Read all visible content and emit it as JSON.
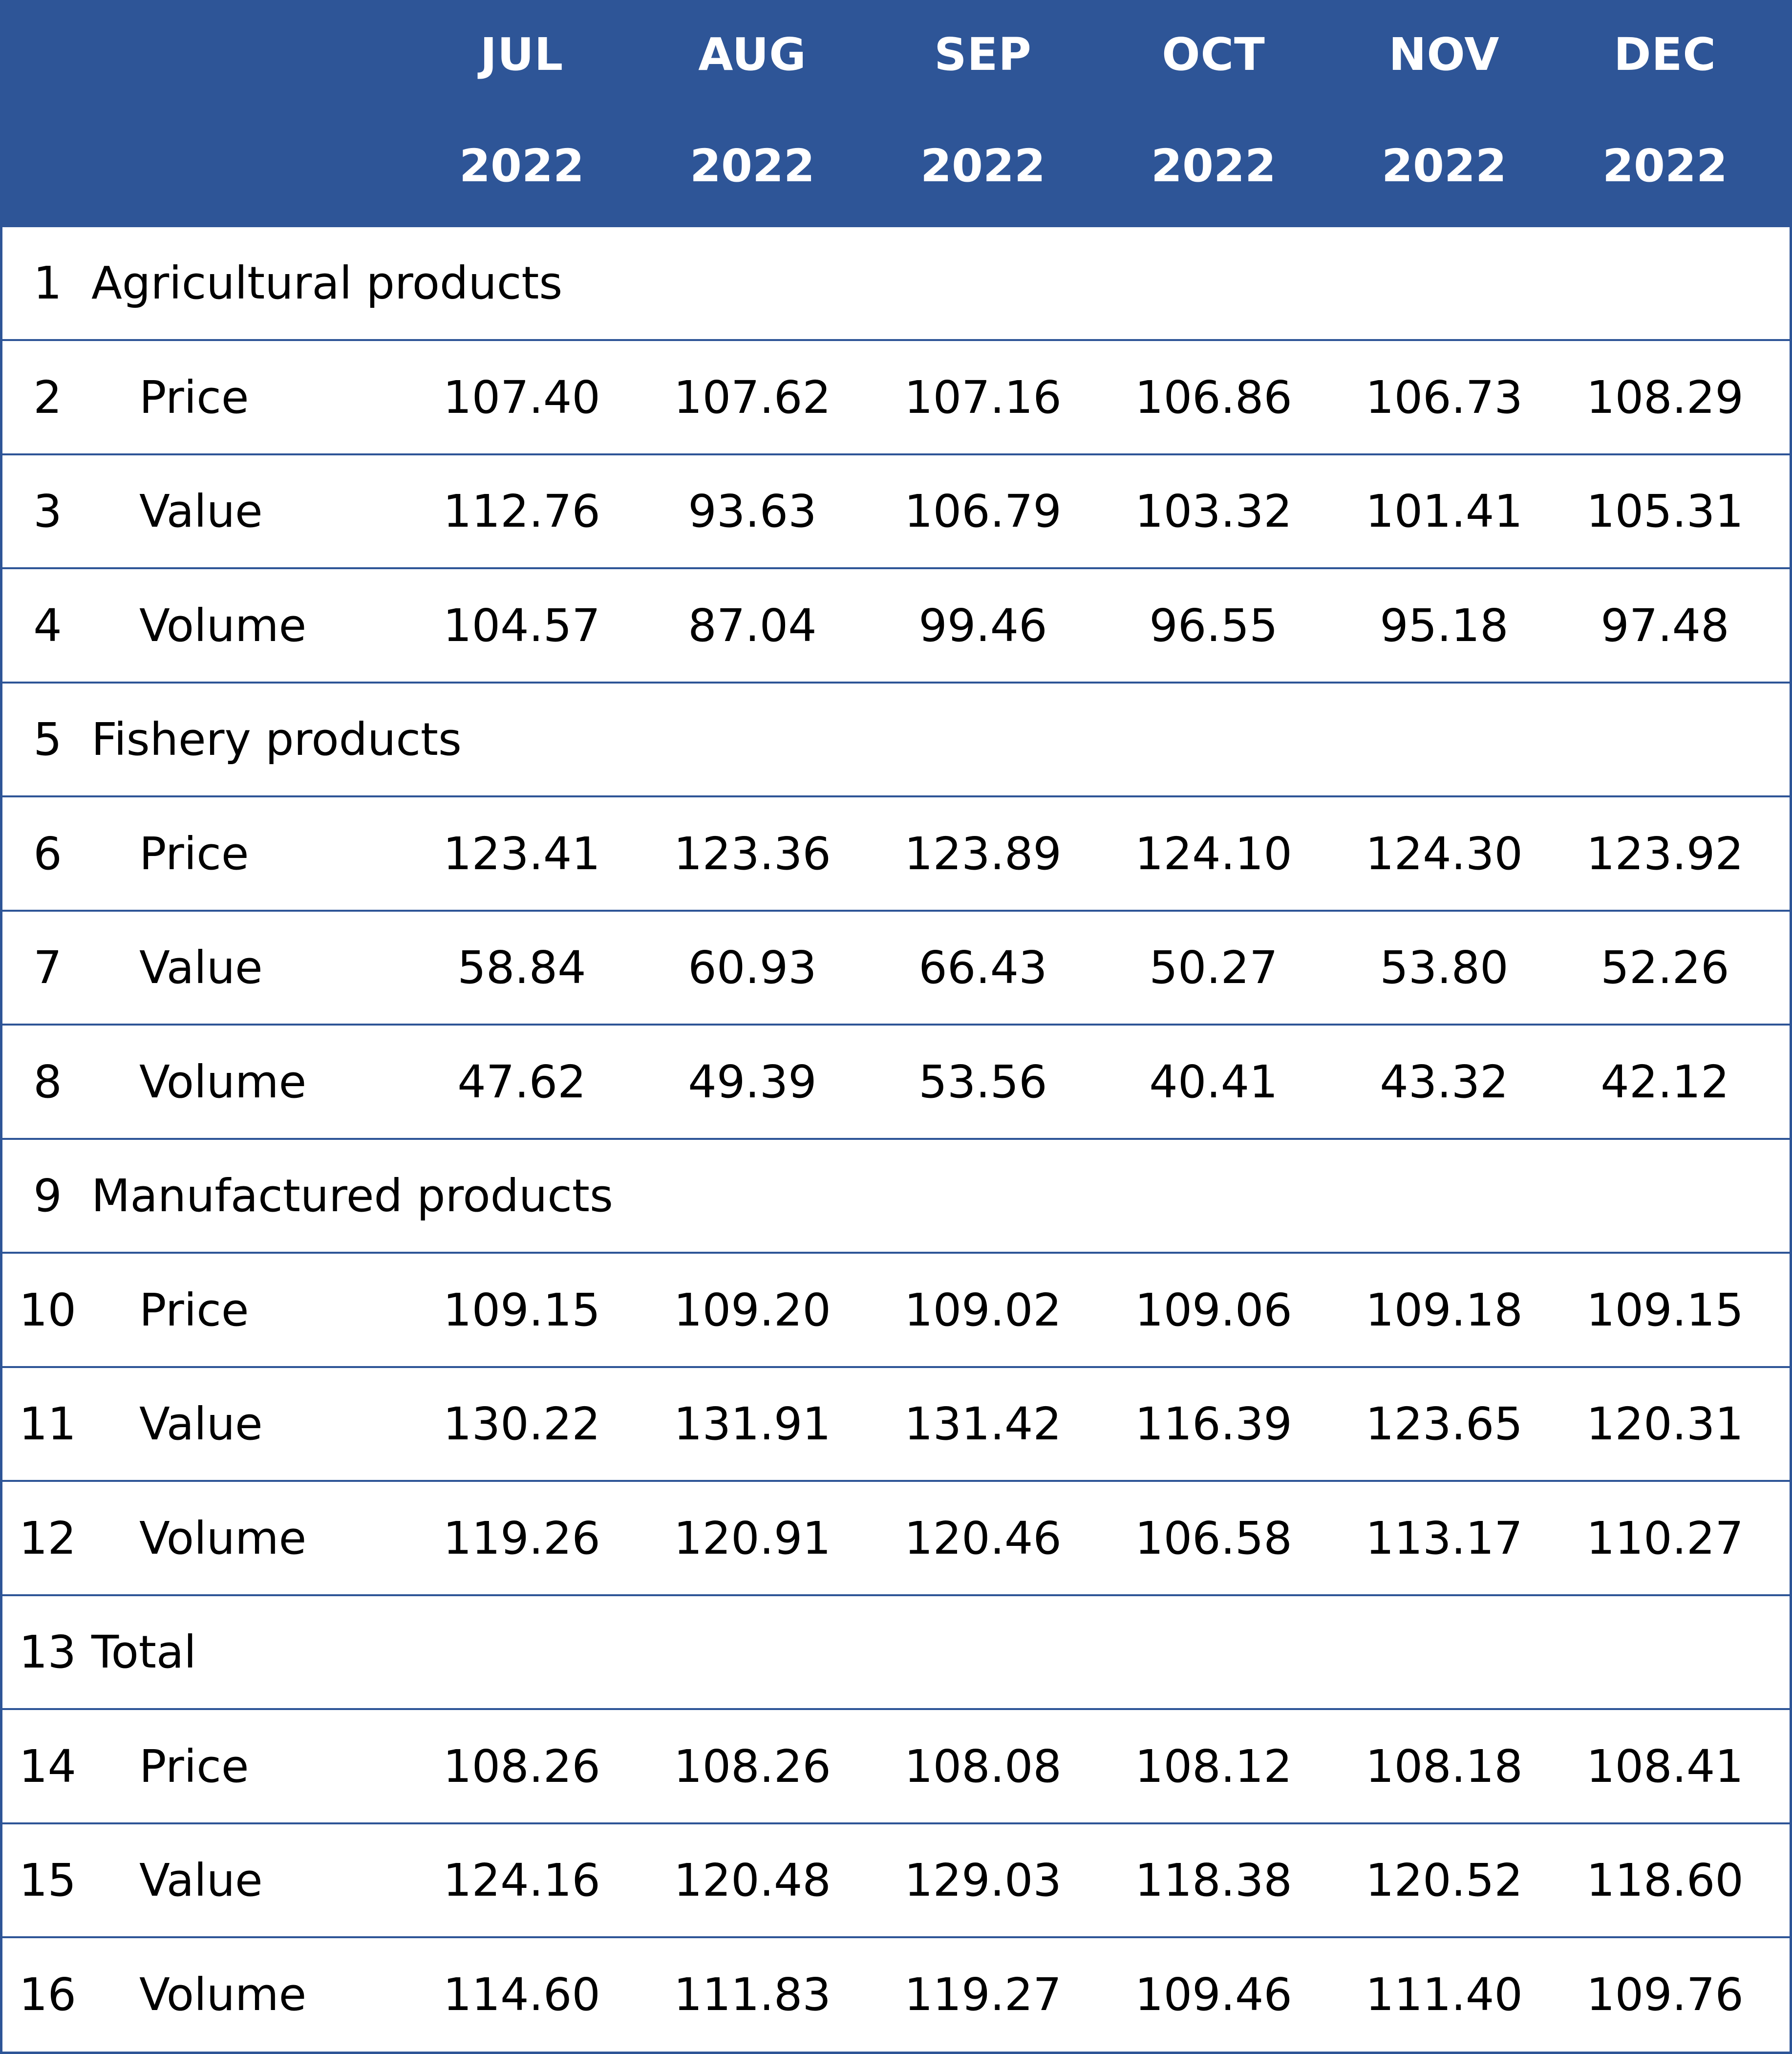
{
  "header": {
    "columns": [
      {
        "month": "JUL",
        "year": "2022"
      },
      {
        "month": "AUG",
        "year": "2022"
      },
      {
        "month": "SEP",
        "year": "2022"
      },
      {
        "month": "OCT",
        "year": "2022"
      },
      {
        "month": "NOV",
        "year": "2022"
      },
      {
        "month": "DEC",
        "year": "2022"
      }
    ]
  },
  "rows": [
    {
      "num": "1",
      "label": "Agricultural products",
      "type": "section",
      "values": []
    },
    {
      "num": "2",
      "label": "Price",
      "type": "metric",
      "values": [
        "107.40",
        "107.62",
        "107.16",
        "106.86",
        "106.73",
        "108.29"
      ]
    },
    {
      "num": "3",
      "label": "Value",
      "type": "metric",
      "values": [
        "112.76",
        "93.63",
        "106.79",
        "103.32",
        "101.41",
        "105.31"
      ]
    },
    {
      "num": "4",
      "label": "Volume",
      "type": "metric",
      "values": [
        "104.57",
        "87.04",
        "99.46",
        "96.55",
        "95.18",
        "97.48"
      ]
    },
    {
      "num": "5",
      "label": "Fishery products",
      "type": "section",
      "values": []
    },
    {
      "num": "6",
      "label": "Price",
      "type": "metric",
      "values": [
        "123.41",
        "123.36",
        "123.89",
        "124.10",
        "124.30",
        "123.92"
      ]
    },
    {
      "num": "7",
      "label": "Value",
      "type": "metric",
      "values": [
        "58.84",
        "60.93",
        "66.43",
        "50.27",
        "53.80",
        "52.26"
      ]
    },
    {
      "num": "8",
      "label": "Volume",
      "type": "metric",
      "values": [
        "47.62",
        "49.39",
        "53.56",
        "40.41",
        "43.32",
        "42.12"
      ]
    },
    {
      "num": "9",
      "label": "Manufactured products",
      "type": "section",
      "values": []
    },
    {
      "num": "10",
      "label": "Price",
      "type": "metric",
      "values": [
        "109.15",
        "109.20",
        "109.02",
        "109.06",
        "109.18",
        "109.15"
      ]
    },
    {
      "num": "11",
      "label": "Value",
      "type": "metric",
      "values": [
        "130.22",
        "131.91",
        "131.42",
        "116.39",
        "123.65",
        "120.31"
      ]
    },
    {
      "num": "12",
      "label": "Volume",
      "type": "metric",
      "values": [
        "119.26",
        "120.91",
        "120.46",
        "106.58",
        "113.17",
        "110.27"
      ]
    },
    {
      "num": "13",
      "label": "Total",
      "type": "section",
      "values": []
    },
    {
      "num": "14",
      "label": "Price",
      "type": "metric",
      "values": [
        "108.26",
        "108.26",
        "108.08",
        "108.12",
        "108.18",
        "108.41"
      ]
    },
    {
      "num": "15",
      "label": "Value",
      "type": "metric",
      "values": [
        "124.16",
        "120.48",
        "129.03",
        "118.38",
        "120.52",
        "118.60"
      ]
    },
    {
      "num": "16",
      "label": "Volume",
      "type": "metric",
      "values": [
        "114.60",
        "111.83",
        "119.27",
        "109.46",
        "111.40",
        "109.76"
      ]
    }
  ],
  "colors": {
    "header_bg": "#2e5597",
    "grid_line": "#2e5597",
    "header_text": "#ffffff",
    "body_text": "#000000"
  }
}
